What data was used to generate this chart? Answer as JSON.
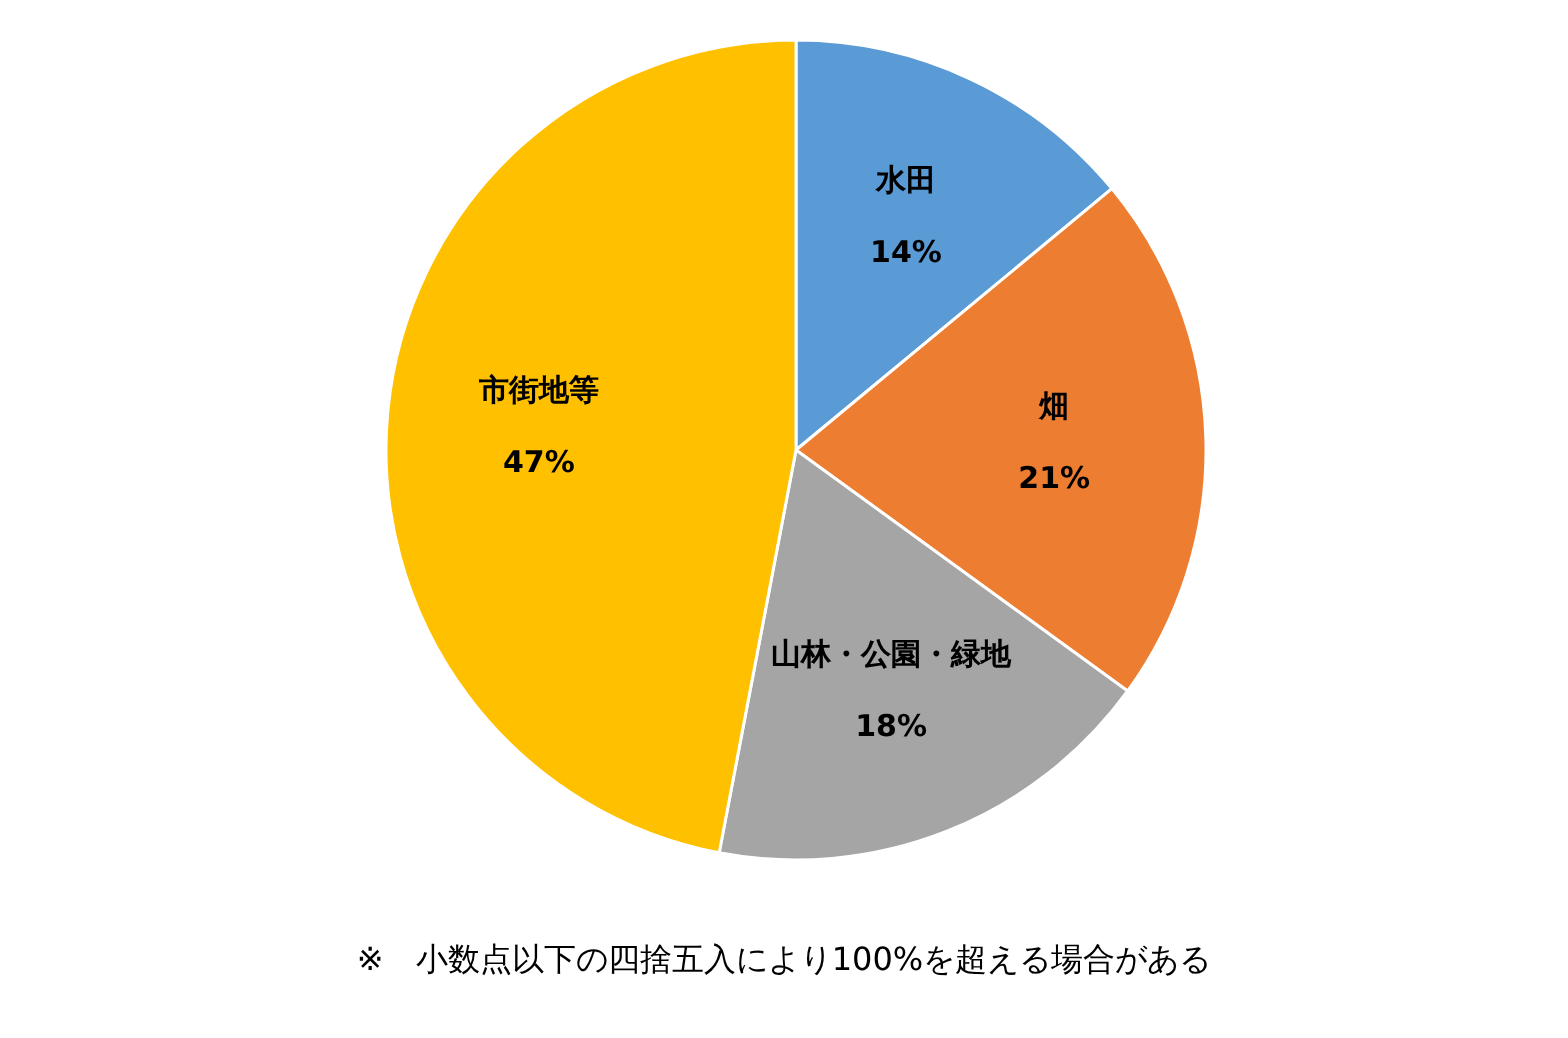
{
  "chart_data": {
    "type": "pie",
    "categories": [
      "水田",
      "畑",
      "山林・公園・緑地",
      "市街地等"
    ],
    "values": [
      14,
      21,
      18,
      47
    ],
    "colors": [
      "#5b9bd5",
      "#ed7d31",
      "#a5a5a5",
      "#ffc000"
    ],
    "value_labels": [
      "14%",
      "21%",
      "18%",
      "47%"
    ],
    "annotations": [
      "※　小数点以下の四捨五入により100%を超える場合がある"
    ]
  }
}
